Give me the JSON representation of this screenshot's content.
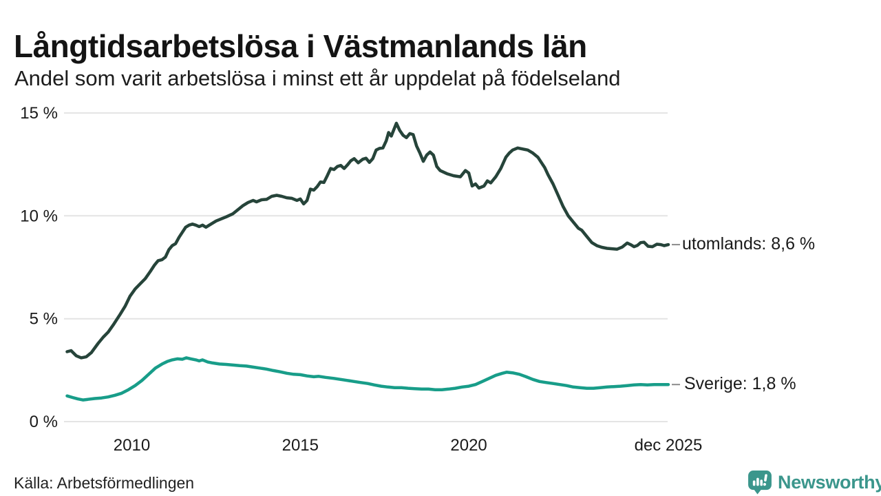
{
  "colors": {
    "utomlands": "#26443a",
    "sverige": "#189d89",
    "grid": "#e4e4e4",
    "text": "#1a1a1a",
    "connector": "#8a8a8a",
    "brand": "#3b968c"
  },
  "brand": {
    "name": "Newsworthy"
  },
  "chart_data": {
    "type": "line",
    "title": "Långtidsarbetslösa i Västmanlands län",
    "subtitle": "Andel som varit arbetslösa i minst ett år uppdelat på födelseland",
    "source": "Källa: Arbetsförmedlingen",
    "xlabel": "",
    "ylabel": "",
    "grid": "horizontal",
    "legend_position": "end-labels-right",
    "xlim": [
      2008.05,
      2025.92
    ],
    "ylim": [
      0,
      15
    ],
    "y_ticks": [
      {
        "v": 15,
        "label": "15 %"
      },
      {
        "v": 10,
        "label": "10 %"
      },
      {
        "v": 5,
        "label": "5 %"
      },
      {
        "v": 0,
        "label": "0 %"
      }
    ],
    "x_ticks": [
      {
        "v": 2010,
        "label": "2010"
      },
      {
        "v": 2015,
        "label": "2015"
      },
      {
        "v": 2020,
        "label": "2020"
      },
      {
        "v": 2025.92,
        "label": "dec 2025"
      }
    ],
    "series": [
      {
        "id": "utomlands",
        "name": "utomlands",
        "end_label": "utomlands: 8,6 %",
        "end_value_text": "8,6 %",
        "color": "#26443a",
        "points": [
          [
            2008.08,
            3.4
          ],
          [
            2008.2,
            3.45
          ],
          [
            2008.35,
            3.2
          ],
          [
            2008.5,
            3.1
          ],
          [
            2008.65,
            3.15
          ],
          [
            2008.8,
            3.35
          ],
          [
            2009.0,
            3.8
          ],
          [
            2009.15,
            4.1
          ],
          [
            2009.3,
            4.35
          ],
          [
            2009.45,
            4.7
          ],
          [
            2009.55,
            4.95
          ],
          [
            2009.65,
            5.2
          ],
          [
            2009.8,
            5.6
          ],
          [
            2009.95,
            6.1
          ],
          [
            2010.1,
            6.45
          ],
          [
            2010.25,
            6.7
          ],
          [
            2010.4,
            6.95
          ],
          [
            2010.55,
            7.3
          ],
          [
            2010.67,
            7.6
          ],
          [
            2010.78,
            7.82
          ],
          [
            2010.9,
            7.87
          ],
          [
            2011.0,
            8.0
          ],
          [
            2011.1,
            8.35
          ],
          [
            2011.2,
            8.55
          ],
          [
            2011.3,
            8.65
          ],
          [
            2011.4,
            8.95
          ],
          [
            2011.5,
            9.2
          ],
          [
            2011.6,
            9.45
          ],
          [
            2011.7,
            9.55
          ],
          [
            2011.8,
            9.6
          ],
          [
            2011.9,
            9.55
          ],
          [
            2012.0,
            9.48
          ],
          [
            2012.1,
            9.55
          ],
          [
            2012.2,
            9.45
          ],
          [
            2012.35,
            9.6
          ],
          [
            2012.5,
            9.75
          ],
          [
            2012.65,
            9.85
          ],
          [
            2012.8,
            9.95
          ],
          [
            2013.0,
            10.1
          ],
          [
            2013.15,
            10.3
          ],
          [
            2013.3,
            10.5
          ],
          [
            2013.45,
            10.65
          ],
          [
            2013.6,
            10.75
          ],
          [
            2013.7,
            10.68
          ],
          [
            2013.85,
            10.78
          ],
          [
            2014.0,
            10.8
          ],
          [
            2014.15,
            10.95
          ],
          [
            2014.3,
            11.0
          ],
          [
            2014.45,
            10.95
          ],
          [
            2014.6,
            10.88
          ],
          [
            2014.75,
            10.85
          ],
          [
            2014.9,
            10.75
          ],
          [
            2015.0,
            10.82
          ],
          [
            2015.1,
            10.58
          ],
          [
            2015.2,
            10.75
          ],
          [
            2015.3,
            11.3
          ],
          [
            2015.4,
            11.25
          ],
          [
            2015.5,
            11.42
          ],
          [
            2015.6,
            11.65
          ],
          [
            2015.7,
            11.62
          ],
          [
            2015.8,
            11.95
          ],
          [
            2015.9,
            12.3
          ],
          [
            2016.0,
            12.25
          ],
          [
            2016.1,
            12.4
          ],
          [
            2016.2,
            12.45
          ],
          [
            2016.3,
            12.3
          ],
          [
            2016.4,
            12.48
          ],
          [
            2016.5,
            12.68
          ],
          [
            2016.6,
            12.78
          ],
          [
            2016.72,
            12.58
          ],
          [
            2016.85,
            12.75
          ],
          [
            2016.95,
            12.8
          ],
          [
            2017.05,
            12.6
          ],
          [
            2017.15,
            12.78
          ],
          [
            2017.25,
            13.2
          ],
          [
            2017.35,
            13.28
          ],
          [
            2017.45,
            13.3
          ],
          [
            2017.55,
            13.65
          ],
          [
            2017.62,
            14.05
          ],
          [
            2017.7,
            13.88
          ],
          [
            2017.85,
            14.5
          ],
          [
            2017.95,
            14.15
          ],
          [
            2018.05,
            13.92
          ],
          [
            2018.15,
            13.8
          ],
          [
            2018.25,
            14.0
          ],
          [
            2018.35,
            13.95
          ],
          [
            2018.45,
            13.4
          ],
          [
            2018.55,
            13.05
          ],
          [
            2018.65,
            12.65
          ],
          [
            2018.75,
            12.95
          ],
          [
            2018.85,
            13.1
          ],
          [
            2018.95,
            12.95
          ],
          [
            2019.05,
            12.4
          ],
          [
            2019.15,
            12.2
          ],
          [
            2019.35,
            12.05
          ],
          [
            2019.55,
            11.95
          ],
          [
            2019.75,
            11.9
          ],
          [
            2019.9,
            12.2
          ],
          [
            2020.0,
            12.08
          ],
          [
            2020.1,
            11.45
          ],
          [
            2020.2,
            11.55
          ],
          [
            2020.3,
            11.35
          ],
          [
            2020.45,
            11.45
          ],
          [
            2020.55,
            11.7
          ],
          [
            2020.65,
            11.6
          ],
          [
            2020.8,
            11.9
          ],
          [
            2020.95,
            12.3
          ],
          [
            2021.1,
            12.85
          ],
          [
            2021.2,
            13.05
          ],
          [
            2021.3,
            13.2
          ],
          [
            2021.45,
            13.3
          ],
          [
            2021.6,
            13.25
          ],
          [
            2021.75,
            13.2
          ],
          [
            2021.9,
            13.05
          ],
          [
            2022.05,
            12.85
          ],
          [
            2022.15,
            12.6
          ],
          [
            2022.25,
            12.35
          ],
          [
            2022.35,
            12.0
          ],
          [
            2022.5,
            11.55
          ],
          [
            2022.65,
            11.0
          ],
          [
            2022.8,
            10.45
          ],
          [
            2022.95,
            10.0
          ],
          [
            2023.1,
            9.7
          ],
          [
            2023.25,
            9.4
          ],
          [
            2023.35,
            9.3
          ],
          [
            2023.5,
            9.0
          ],
          [
            2023.65,
            8.7
          ],
          [
            2023.8,
            8.55
          ],
          [
            2023.95,
            8.47
          ],
          [
            2024.1,
            8.42
          ],
          [
            2024.25,
            8.4
          ],
          [
            2024.4,
            8.38
          ],
          [
            2024.55,
            8.48
          ],
          [
            2024.7,
            8.68
          ],
          [
            2024.8,
            8.6
          ],
          [
            2024.9,
            8.5
          ],
          [
            2025.0,
            8.56
          ],
          [
            2025.1,
            8.7
          ],
          [
            2025.2,
            8.72
          ],
          [
            2025.32,
            8.52
          ],
          [
            2025.45,
            8.5
          ],
          [
            2025.58,
            8.62
          ],
          [
            2025.7,
            8.6
          ],
          [
            2025.8,
            8.55
          ],
          [
            2025.92,
            8.6
          ]
        ]
      },
      {
        "id": "sverige",
        "name": "Sverige",
        "end_label": "Sverige: 1,8 %",
        "end_value_text": "1,8 %",
        "color": "#189d89",
        "points": [
          [
            2008.08,
            1.25
          ],
          [
            2008.25,
            1.17
          ],
          [
            2008.4,
            1.1
          ],
          [
            2008.55,
            1.05
          ],
          [
            2008.7,
            1.08
          ],
          [
            2008.9,
            1.12
          ],
          [
            2009.1,
            1.15
          ],
          [
            2009.3,
            1.2
          ],
          [
            2009.5,
            1.28
          ],
          [
            2009.7,
            1.38
          ],
          [
            2009.9,
            1.55
          ],
          [
            2010.1,
            1.75
          ],
          [
            2010.3,
            2.0
          ],
          [
            2010.5,
            2.3
          ],
          [
            2010.7,
            2.6
          ],
          [
            2010.9,
            2.8
          ],
          [
            2011.05,
            2.92
          ],
          [
            2011.2,
            3.0
          ],
          [
            2011.35,
            3.05
          ],
          [
            2011.5,
            3.03
          ],
          [
            2011.62,
            3.1
          ],
          [
            2011.75,
            3.05
          ],
          [
            2011.9,
            3.0
          ],
          [
            2012.0,
            2.95
          ],
          [
            2012.1,
            3.0
          ],
          [
            2012.25,
            2.9
          ],
          [
            2012.4,
            2.85
          ],
          [
            2012.6,
            2.8
          ],
          [
            2012.8,
            2.78
          ],
          [
            2013.0,
            2.75
          ],
          [
            2013.2,
            2.72
          ],
          [
            2013.4,
            2.7
          ],
          [
            2013.6,
            2.65
          ],
          [
            2013.8,
            2.6
          ],
          [
            2014.0,
            2.55
          ],
          [
            2014.2,
            2.48
          ],
          [
            2014.4,
            2.42
          ],
          [
            2014.6,
            2.35
          ],
          [
            2014.8,
            2.3
          ],
          [
            2015.0,
            2.28
          ],
          [
            2015.2,
            2.22
          ],
          [
            2015.4,
            2.18
          ],
          [
            2015.55,
            2.2
          ],
          [
            2015.75,
            2.15
          ],
          [
            2016.0,
            2.1
          ],
          [
            2016.2,
            2.05
          ],
          [
            2016.4,
            2.0
          ],
          [
            2016.6,
            1.95
          ],
          [
            2016.8,
            1.9
          ],
          [
            2017.0,
            1.85
          ],
          [
            2017.2,
            1.78
          ],
          [
            2017.4,
            1.72
          ],
          [
            2017.6,
            1.68
          ],
          [
            2017.8,
            1.65
          ],
          [
            2018.0,
            1.65
          ],
          [
            2018.2,
            1.62
          ],
          [
            2018.4,
            1.6
          ],
          [
            2018.6,
            1.58
          ],
          [
            2018.8,
            1.58
          ],
          [
            2019.0,
            1.55
          ],
          [
            2019.2,
            1.55
          ],
          [
            2019.4,
            1.58
          ],
          [
            2019.6,
            1.62
          ],
          [
            2019.8,
            1.68
          ],
          [
            2020.0,
            1.72
          ],
          [
            2020.2,
            1.8
          ],
          [
            2020.4,
            1.95
          ],
          [
            2020.6,
            2.1
          ],
          [
            2020.8,
            2.25
          ],
          [
            2021.0,
            2.35
          ],
          [
            2021.12,
            2.4
          ],
          [
            2021.3,
            2.37
          ],
          [
            2021.5,
            2.3
          ],
          [
            2021.7,
            2.18
          ],
          [
            2021.9,
            2.05
          ],
          [
            2022.1,
            1.95
          ],
          [
            2022.3,
            1.9
          ],
          [
            2022.5,
            1.85
          ],
          [
            2022.7,
            1.8
          ],
          [
            2022.9,
            1.75
          ],
          [
            2023.1,
            1.68
          ],
          [
            2023.3,
            1.65
          ],
          [
            2023.5,
            1.62
          ],
          [
            2023.7,
            1.62
          ],
          [
            2023.9,
            1.65
          ],
          [
            2024.1,
            1.68
          ],
          [
            2024.3,
            1.7
          ],
          [
            2024.5,
            1.72
          ],
          [
            2024.7,
            1.75
          ],
          [
            2024.9,
            1.78
          ],
          [
            2025.1,
            1.8
          ],
          [
            2025.3,
            1.78
          ],
          [
            2025.5,
            1.8
          ],
          [
            2025.7,
            1.8
          ],
          [
            2025.92,
            1.8
          ]
        ]
      }
    ]
  }
}
